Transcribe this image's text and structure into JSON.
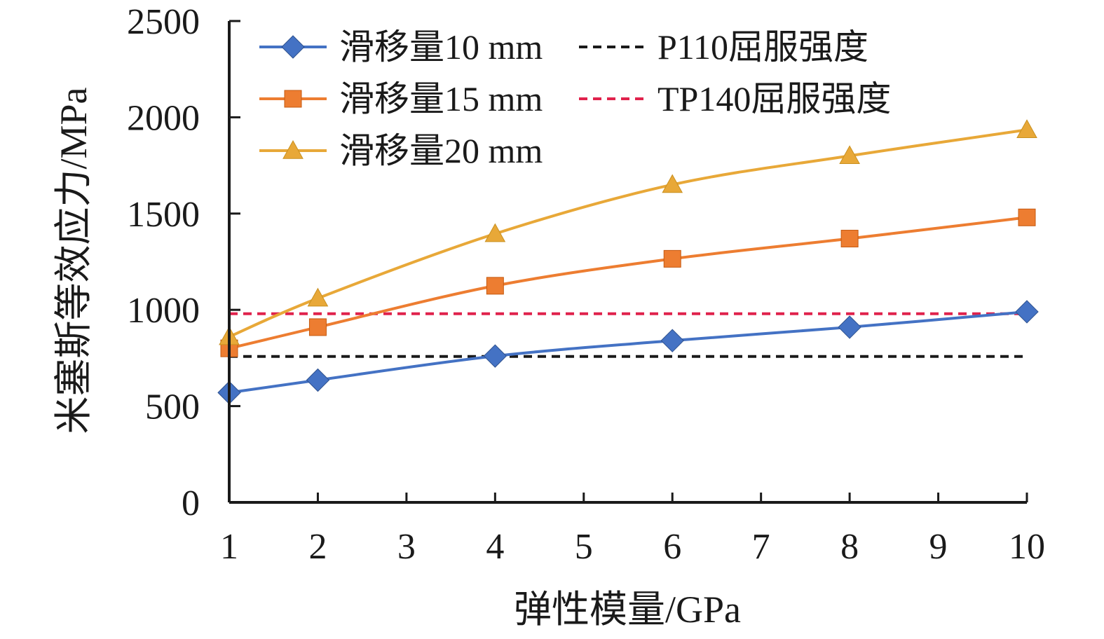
{
  "chart_data": {
    "type": "line",
    "title": "",
    "xlabel": "弹性模量/GPa",
    "ylabel": "米塞斯等效应力/MPa",
    "x_ticks": [
      "1",
      "2",
      "3",
      "4",
      "5",
      "6",
      "7",
      "8",
      "9",
      "10"
    ],
    "y_ticks": [
      "0",
      "500",
      "1000",
      "1500",
      "2000",
      "2500"
    ],
    "ylim": [
      0,
      2500
    ],
    "grid": false,
    "legend_position": "top-left",
    "x": [
      1,
      2,
      4,
      6,
      8,
      10
    ],
    "series": [
      {
        "name": "滑移量10 mm",
        "color": "#4472C4",
        "marker": "diamond",
        "values": [
          570,
          635,
          760,
          840,
          910,
          990
        ]
      },
      {
        "name": "滑移量15 mm",
        "color": "#ED7D31",
        "marker": "square",
        "values": [
          800,
          910,
          1125,
          1265,
          1370,
          1480
        ]
      },
      {
        "name": "滑移量20 mm",
        "color": "#E8A838",
        "marker": "triangle",
        "values": [
          860,
          1060,
          1395,
          1650,
          1800,
          1935
        ]
      }
    ],
    "reference_lines": [
      {
        "name": "P110屈服强度",
        "color": "#1a1a1a",
        "value": 758
      },
      {
        "name": "TP140屈服强度",
        "color": "#E0224C",
        "value": 980
      }
    ]
  }
}
